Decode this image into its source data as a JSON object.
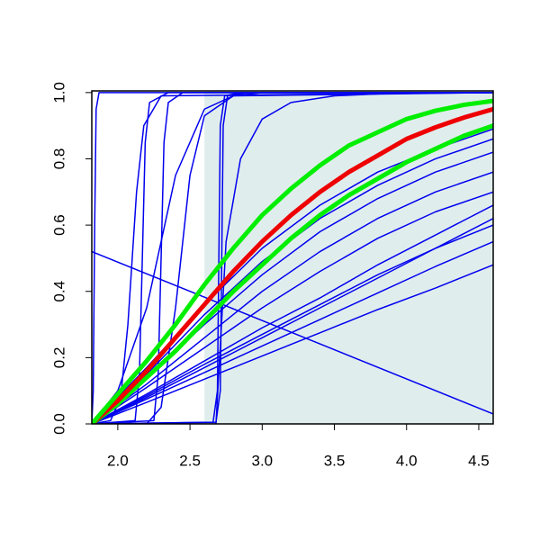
{
  "chart_data": {
    "type": "line",
    "xlim": [
      1.82,
      4.6
    ],
    "ylim": [
      0,
      1.005
    ],
    "xticks": [
      {
        "value": 2,
        "label": "2.0"
      },
      2.5,
      {
        "value": 3,
        "label": "3.0"
      },
      3.5,
      {
        "value": 4,
        "label": "4.0"
      },
      4.5
    ],
    "yticks": [
      {
        "value": 0,
        "label": "0.0"
      },
      0.2,
      0.4,
      0.6,
      0.8,
      {
        "value": 1,
        "label": "1.0"
      }
    ],
    "shaded_region": {
      "x": [
        2.6,
        4.6
      ],
      "color": "#e0eded"
    },
    "series": [
      {
        "color": "#0000ee",
        "width": 1.5,
        "x": [
          1.82,
          1.83,
          1.84,
          1.85,
          1.87,
          4.6
        ],
        "values": [
          0,
          0.1,
          0.6,
          0.95,
          1,
          1
        ]
      },
      {
        "color": "#0000ee",
        "width": 1.5,
        "x": [
          1.82,
          1.95,
          2.02,
          2.07,
          2.1,
          2.13,
          2.18,
          2.3,
          4.6
        ],
        "values": [
          0,
          0.01,
          0.08,
          0.3,
          0.5,
          0.7,
          0.9,
          0.99,
          1
        ]
      },
      {
        "color": "#0000ee",
        "width": 1.5,
        "x": [
          1.82,
          2.12,
          2.15,
          2.17,
          2.19,
          2.22,
          2.35,
          4.6
        ],
        "values": [
          0,
          0.01,
          0.15,
          0.5,
          0.85,
          0.97,
          1,
          1
        ]
      },
      {
        "color": "#0000ee",
        "width": 1.5,
        "x": [
          1.82,
          2.25,
          2.28,
          2.3,
          2.32,
          2.35,
          2.45,
          4.6
        ],
        "values": [
          0,
          0.01,
          0.15,
          0.5,
          0.85,
          0.97,
          1,
          1
        ]
      },
      {
        "color": "#0000ee",
        "width": 1.5,
        "x": [
          1.82,
          2.66,
          2.69,
          2.7,
          2.71,
          2.74,
          2.85,
          4.6
        ],
        "values": [
          0,
          0.005,
          0.1,
          0.5,
          0.9,
          0.99,
          1,
          1
        ]
      },
      {
        "color": "#0000ee",
        "width": 1.5,
        "x": [
          1.82,
          2.68,
          2.71,
          2.72,
          2.73,
          2.76,
          2.9,
          4.6
        ],
        "values": [
          0,
          0.005,
          0.1,
          0.5,
          0.9,
          0.99,
          1,
          1
        ]
      },
      {
        "color": "#0000ee",
        "width": 1.5,
        "x": [
          1.82,
          2.2,
          2.3,
          2.4,
          2.5,
          2.6,
          2.8,
          4.6
        ],
        "values": [
          0,
          0,
          0.05,
          0.35,
          0.75,
          0.93,
          0.99,
          1
        ]
      },
      {
        "color": "#0000ee",
        "width": 1.5,
        "x": [
          1.82,
          2.68,
          2.75,
          2.85,
          3.0,
          3.2,
          3.5,
          4.0,
          4.6
        ],
        "values": [
          0,
          0,
          0.55,
          0.8,
          0.92,
          0.97,
          0.99,
          1,
          1
        ]
      },
      {
        "color": "#0000ee",
        "width": 1.5,
        "x": [
          1.82,
          2.0,
          2.2,
          2.4,
          2.6,
          2.8,
          3.0,
          3.5,
          4.6
        ],
        "values": [
          0,
          0.1,
          0.35,
          0.75,
          0.95,
          0.99,
          1,
          1,
          1
        ]
      },
      {
        "color": "#0000ee",
        "width": 1.5,
        "x": [
          1.82,
          2.2,
          2.6,
          3.0,
          3.4,
          3.8,
          4.2,
          4.6
        ],
        "values": [
          0,
          0.17,
          0.36,
          0.53,
          0.66,
          0.76,
          0.83,
          0.89
        ]
      },
      {
        "color": "#0000ee",
        "width": 1.5,
        "x": [
          1.82,
          2.2,
          2.6,
          3.0,
          3.4,
          3.8,
          4.2,
          4.6
        ],
        "values": [
          0,
          0.15,
          0.33,
          0.49,
          0.62,
          0.72,
          0.8,
          0.86
        ]
      },
      {
        "color": "#0000ee",
        "width": 1.5,
        "x": [
          1.82,
          2.2,
          2.6,
          3.0,
          3.4,
          3.8,
          4.2,
          4.6
        ],
        "values": [
          0,
          0.14,
          0.3,
          0.45,
          0.58,
          0.68,
          0.76,
          0.82
        ]
      },
      {
        "color": "#0000ee",
        "width": 1.5,
        "x": [
          1.82,
          2.2,
          2.6,
          3.0,
          3.4,
          3.8,
          4.2,
          4.6
        ],
        "values": [
          0,
          0.12,
          0.26,
          0.4,
          0.52,
          0.62,
          0.7,
          0.76
        ]
      },
      {
        "color": "#0000ee",
        "width": 1.5,
        "x": [
          1.82,
          2.2,
          2.6,
          3.0,
          3.4,
          3.8,
          4.2,
          4.6
        ],
        "values": [
          0,
          0.11,
          0.23,
          0.35,
          0.46,
          0.56,
          0.64,
          0.7
        ]
      },
      {
        "color": "#0000ee",
        "width": 1.5,
        "x": [
          1.82,
          2.2,
          2.6,
          3.0,
          3.4,
          3.8,
          4.2,
          4.6
        ],
        "values": [
          0,
          0.09,
          0.19,
          0.29,
          0.38,
          0.48,
          0.57,
          0.66
        ]
      },
      {
        "color": "#0000ee",
        "width": 1.5,
        "x": [
          1.82,
          2.2,
          2.6,
          3.0,
          3.4,
          3.8,
          4.2,
          4.6
        ],
        "values": [
          0,
          0.08,
          0.17,
          0.26,
          0.35,
          0.44,
          0.53,
          0.62
        ]
      },
      {
        "color": "#0000ee",
        "width": 1.5,
        "x": [
          1.82,
          2.2,
          2.6,
          3.0,
          3.4,
          3.8,
          4.2,
          4.6
        ],
        "values": [
          0,
          0.085,
          0.18,
          0.27,
          0.36,
          0.45,
          0.53,
          0.6
        ]
      },
      {
        "color": "#0000ee",
        "width": 1.5,
        "x": [
          1.82,
          2.2,
          2.6,
          3.0,
          3.4,
          3.8,
          4.2,
          4.6
        ],
        "values": [
          0,
          0.075,
          0.155,
          0.235,
          0.315,
          0.395,
          0.475,
          0.55
        ]
      },
      {
        "color": "#0000ee",
        "width": 1.5,
        "x": [
          1.82,
          2.2,
          2.6,
          3.0,
          3.4,
          3.8,
          4.2,
          4.6
        ],
        "values": [
          0,
          0.065,
          0.135,
          0.205,
          0.275,
          0.345,
          0.41,
          0.48
        ]
      },
      {
        "color": "#0000ee",
        "width": 1.5,
        "x": [
          1.82,
          4.6
        ],
        "values": [
          0.52,
          0.03
        ]
      },
      {
        "color": "#00ee00",
        "width": 5,
        "x": [
          1.82,
          2.0,
          2.2,
          2.4,
          2.6,
          2.8,
          3.0,
          3.2,
          3.4,
          3.6,
          3.8,
          4.0,
          4.2,
          4.4,
          4.6
        ],
        "values": [
          0,
          0.06,
          0.14,
          0.22,
          0.31,
          0.4,
          0.48,
          0.56,
          0.63,
          0.69,
          0.74,
          0.79,
          0.83,
          0.87,
          0.9
        ]
      },
      {
        "color": "#ee0000",
        "width": 5,
        "x": [
          1.82,
          2.0,
          2.2,
          2.4,
          2.6,
          2.8,
          3.0,
          3.2,
          3.4,
          3.6,
          3.8,
          4.0,
          4.2,
          4.4,
          4.6
        ],
        "values": [
          0,
          0.07,
          0.16,
          0.26,
          0.36,
          0.46,
          0.55,
          0.63,
          0.7,
          0.76,
          0.81,
          0.86,
          0.895,
          0.925,
          0.95
        ]
      },
      {
        "color": "#00ee00",
        "width": 5,
        "x": [
          1.82,
          2.0,
          2.2,
          2.4,
          2.6,
          2.8,
          3.0,
          3.2,
          3.4,
          3.6,
          3.8,
          4.0,
          4.2,
          4.4,
          4.6
        ],
        "values": [
          0,
          0.09,
          0.19,
          0.3,
          0.42,
          0.53,
          0.63,
          0.71,
          0.78,
          0.84,
          0.88,
          0.92,
          0.945,
          0.963,
          0.975
        ]
      }
    ]
  }
}
